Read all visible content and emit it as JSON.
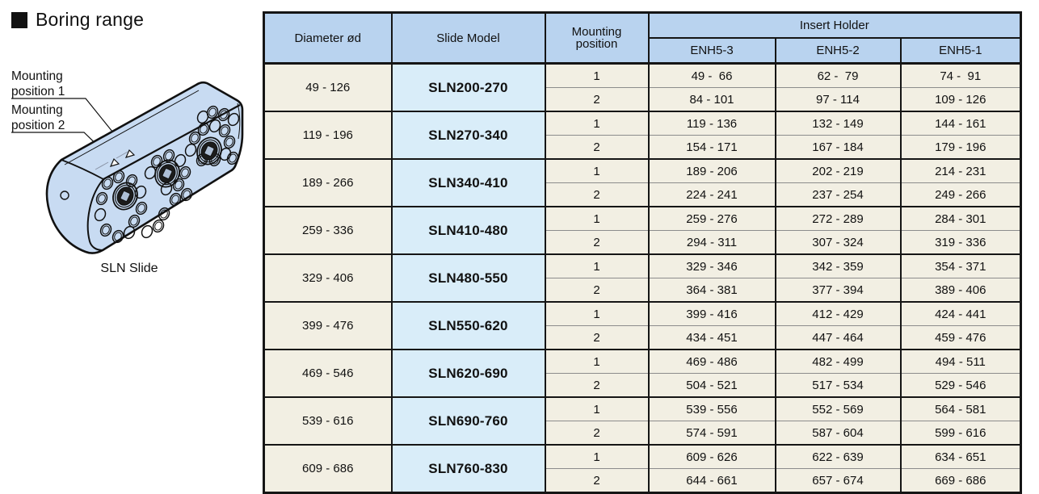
{
  "title": "Boring range",
  "figure": {
    "mounting_label_1": "Mounting\nposition 1",
    "mounting_label_2": "Mounting\nposition 2",
    "caption": "SLN Slide"
  },
  "table": {
    "headers": {
      "diameter": "Diameter ød",
      "slide_model": "Slide Model",
      "mounting_position": "Mounting\nposition",
      "insert_holder": "Insert Holder",
      "enh_columns": [
        "ENH5-3",
        "ENH5-2",
        "ENH5-1"
      ]
    },
    "rows": [
      {
        "diameter": "49 - 126",
        "slide_model": "SLN200-270",
        "positions": [
          {
            "position": "1",
            "ranges": [
              "49 -  66",
              "62 -  79",
              "74 -  91"
            ]
          },
          {
            "position": "2",
            "ranges": [
              "84 - 101",
              "97 - 114",
              "109 - 126"
            ]
          }
        ]
      },
      {
        "diameter": "119 - 196",
        "slide_model": "SLN270-340",
        "positions": [
          {
            "position": "1",
            "ranges": [
              "119 - 136",
              "132 - 149",
              "144 - 161"
            ]
          },
          {
            "position": "2",
            "ranges": [
              "154 - 171",
              "167 - 184",
              "179 - 196"
            ]
          }
        ]
      },
      {
        "diameter": "189 - 266",
        "slide_model": "SLN340-410",
        "positions": [
          {
            "position": "1",
            "ranges": [
              "189 - 206",
              "202 - 219",
              "214 - 231"
            ]
          },
          {
            "position": "2",
            "ranges": [
              "224 - 241",
              "237 - 254",
              "249 - 266"
            ]
          }
        ]
      },
      {
        "diameter": "259 - 336",
        "slide_model": "SLN410-480",
        "positions": [
          {
            "position": "1",
            "ranges": [
              "259 - 276",
              "272 - 289",
              "284 - 301"
            ]
          },
          {
            "position": "2",
            "ranges": [
              "294 - 311",
              "307 - 324",
              "319 - 336"
            ]
          }
        ]
      },
      {
        "diameter": "329 - 406",
        "slide_model": "SLN480-550",
        "positions": [
          {
            "position": "1",
            "ranges": [
              "329 - 346",
              "342 - 359",
              "354 - 371"
            ]
          },
          {
            "position": "2",
            "ranges": [
              "364 - 381",
              "377 - 394",
              "389 - 406"
            ]
          }
        ]
      },
      {
        "diameter": "399 - 476",
        "slide_model": "SLN550-620",
        "positions": [
          {
            "position": "1",
            "ranges": [
              "399 - 416",
              "412 - 429",
              "424 - 441"
            ]
          },
          {
            "position": "2",
            "ranges": [
              "434 - 451",
              "447 - 464",
              "459 - 476"
            ]
          }
        ]
      },
      {
        "diameter": "469 - 546",
        "slide_model": "SLN620-690",
        "positions": [
          {
            "position": "1",
            "ranges": [
              "469 - 486",
              "482 - 499",
              "494 - 511"
            ]
          },
          {
            "position": "2",
            "ranges": [
              "504 - 521",
              "517 - 534",
              "529 - 546"
            ]
          }
        ]
      },
      {
        "diameter": "539 - 616",
        "slide_model": "SLN690-760",
        "positions": [
          {
            "position": "1",
            "ranges": [
              "539 - 556",
              "552 - 569",
              "564 - 581"
            ]
          },
          {
            "position": "2",
            "ranges": [
              "574 - 591",
              "587 - 604",
              "599 - 616"
            ]
          }
        ]
      },
      {
        "diameter": "609 - 686",
        "slide_model": "SLN760-830",
        "positions": [
          {
            "position": "1",
            "ranges": [
              "609 - 626",
              "622 - 639",
              "634 - 651"
            ]
          },
          {
            "position": "2",
            "ranges": [
              "644 - 661",
              "657 - 674",
              "669 - 686"
            ]
          }
        ]
      }
    ]
  },
  "colors": {
    "header_blue": "#b9d3ef",
    "model_blue": "#d9edf9",
    "cell_cream": "#f2efe3",
    "figure_blue": "#c8dbf2",
    "border": "#151515",
    "thin_line": "#8c8c8c"
  }
}
